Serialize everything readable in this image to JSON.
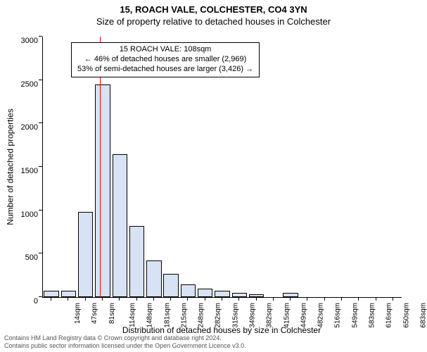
{
  "titles": {
    "line1": "15, ROACH VALE, COLCHESTER, CO4 3YN",
    "line2": "Size of property relative to detached houses in Colchester"
  },
  "chart": {
    "type": "histogram",
    "ylabel": "Number of detached properties",
    "xlabel": "Distribution of detached houses by size in Colchester",
    "ylim": [
      0,
      3000
    ],
    "ytick_step": 500,
    "x_categories": [
      "14sqm",
      "47sqm",
      "81sqm",
      "114sqm",
      "148sqm",
      "181sqm",
      "215sqm",
      "248sqm",
      "282sqm",
      "315sqm",
      "349sqm",
      "382sqm",
      "415sqm",
      "449sqm",
      "482sqm",
      "516sqm",
      "549sqm",
      "583sqm",
      "616sqm",
      "650sqm",
      "683sqm"
    ],
    "values": [
      70,
      70,
      980,
      2450,
      1650,
      820,
      420,
      270,
      150,
      100,
      70,
      50,
      30,
      0,
      50,
      0,
      0,
      0,
      0,
      0,
      0
    ],
    "bar_fill": "#d7e3f4",
    "bar_border": "#000000",
    "bar_border_width": 0.5,
    "background_color": "#ffffff",
    "axis_color": "#000000",
    "label_fontsize": 12,
    "tick_fontsize": 11,
    "x_tick_rotation": 90,
    "marker": {
      "value_sqm": 108,
      "color": "#ff0000",
      "width": 1
    }
  },
  "annotation": {
    "line1": "15 ROACH VALE: 108sqm",
    "line2": "← 46% of detached houses are smaller (2,969)",
    "line3": "53% of semi-detached houses are larger (3,426) →",
    "border_color": "#000000",
    "background": "#ffffff",
    "fontsize": 11
  },
  "footer": {
    "line1": "Contains HM Land Registry data © Crown copyright and database right 2024.",
    "line2": "Contains public sector information licensed under the Open Government Licence v3.0."
  }
}
